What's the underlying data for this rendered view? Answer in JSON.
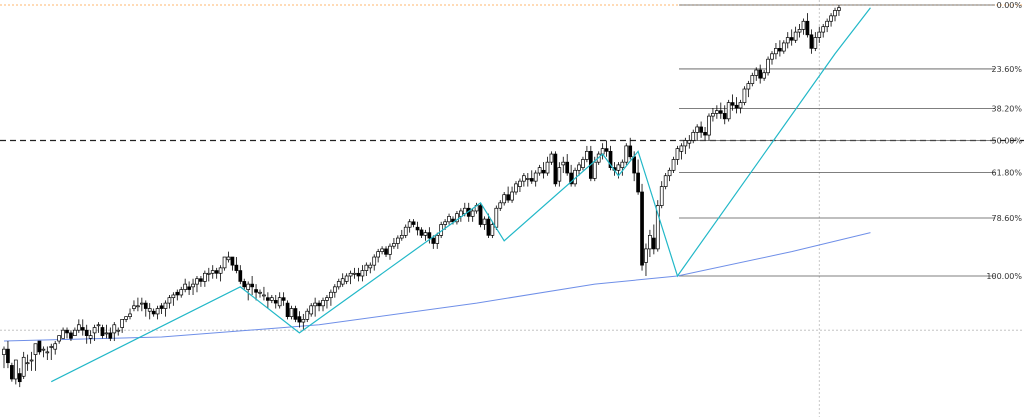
{
  "chart_data": {
    "type": "candlestick",
    "title": "",
    "xlabel": "",
    "ylabel": "",
    "ylim": [
      -0.3,
      1.05
    ],
    "fibonacci": {
      "x_start_index": 171,
      "x_end_index": 256,
      "levels": [
        {
          "ratio": 0.0,
          "label": "0.00%",
          "value": 1.0
        },
        {
          "ratio": 0.236,
          "label": "23.60%",
          "value": 0.764
        },
        {
          "ratio": 0.382,
          "label": "38.20%",
          "value": 0.618
        },
        {
          "ratio": 0.5,
          "label": "50.00%",
          "value": 0.5
        },
        {
          "ratio": 0.618,
          "label": "61.80%",
          "value": 0.382
        },
        {
          "ratio": 0.786,
          "label": "78.60%",
          "value": 0.214
        },
        {
          "ratio": 1.0,
          "label": "100.00%",
          "value": 0.0
        }
      ]
    },
    "horizontal_lines": [
      {
        "value": 1.0,
        "style": "dotted",
        "color": "#ffa040"
      },
      {
        "value": 0.5,
        "style": "dashed",
        "color": "#222222"
      },
      {
        "value": -0.2,
        "style": "dotted",
        "color": "#bbbbbb"
      }
    ],
    "vertical_lines": [
      {
        "index": 207,
        "style": "dotted",
        "color": "#bbbbbb"
      }
    ],
    "moving_average": {
      "color": "#6f8fe8",
      "points": [
        [
          0,
          -0.24
        ],
        [
          40,
          -0.225
        ],
        [
          80,
          -0.18
        ],
        [
          120,
          -0.1
        ],
        [
          150,
          -0.03
        ],
        [
          171,
          0.0
        ],
        [
          200,
          0.09
        ],
        [
          220,
          0.16
        ]
      ]
    },
    "zigzag": {
      "color": "#22b8c8",
      "points": [
        [
          12,
          -0.39
        ],
        [
          60,
          -0.04
        ],
        [
          75,
          -0.21
        ],
        [
          121,
          0.27
        ],
        [
          127,
          0.13
        ],
        [
          152,
          0.45
        ],
        [
          156,
          0.37
        ],
        [
          161,
          0.46
        ],
        [
          171,
          0.0
        ],
        [
          211,
          0.82
        ],
        [
          220,
          0.99
        ]
      ]
    },
    "candles": [
      [
        -0.29,
        -0.26,
        -0.34,
        -0.27
      ],
      [
        -0.27,
        -0.24,
        -0.34,
        -0.32
      ],
      [
        -0.33,
        -0.32,
        -0.39,
        -0.38
      ],
      [
        -0.38,
        -0.31,
        -0.4,
        -0.31
      ],
      [
        -0.36,
        -0.34,
        -0.41,
        -0.39
      ],
      [
        -0.37,
        -0.28,
        -0.38,
        -0.3
      ],
      [
        -0.32,
        -0.29,
        -0.35,
        -0.32
      ],
      [
        -0.31,
        -0.28,
        -0.35,
        -0.31
      ],
      [
        -0.29,
        -0.25,
        -0.35,
        -0.25
      ],
      [
        -0.24,
        -0.24,
        -0.29,
        -0.28
      ],
      [
        -0.27,
        -0.26,
        -0.3,
        -0.27
      ],
      [
        -0.28,
        -0.26,
        -0.31,
        -0.28
      ],
      [
        -0.26,
        -0.25,
        -0.31,
        -0.26
      ],
      [
        -0.27,
        -0.24,
        -0.29,
        -0.25
      ],
      [
        -0.24,
        -0.22,
        -0.25,
        -0.22
      ],
      [
        -0.23,
        -0.19,
        -0.23,
        -0.2
      ],
      [
        -0.2,
        -0.19,
        -0.23,
        -0.21
      ],
      [
        -0.21,
        -0.2,
        -0.24,
        -0.23
      ],
      [
        -0.22,
        -0.19,
        -0.22,
        -0.2
      ],
      [
        -0.2,
        -0.16,
        -0.21,
        -0.18
      ],
      [
        -0.19,
        -0.16,
        -0.22,
        -0.2
      ],
      [
        -0.2,
        -0.18,
        -0.25,
        -0.22
      ],
      [
        -0.23,
        -0.2,
        -0.25,
        -0.22
      ],
      [
        -0.21,
        -0.18,
        -0.24,
        -0.19
      ],
      [
        -0.18,
        -0.17,
        -0.21,
        -0.18
      ],
      [
        -0.19,
        -0.18,
        -0.23,
        -0.22
      ],
      [
        -0.21,
        -0.18,
        -0.23,
        -0.21
      ],
      [
        -0.21,
        -0.19,
        -0.24,
        -0.23
      ],
      [
        -0.21,
        -0.17,
        -0.24,
        -0.18
      ],
      [
        -0.2,
        -0.19,
        -0.22,
        -0.2
      ],
      [
        -0.19,
        -0.16,
        -0.21,
        -0.16
      ],
      [
        -0.16,
        -0.15,
        -0.17,
        -0.15
      ],
      [
        -0.15,
        -0.12,
        -0.16,
        -0.14
      ],
      [
        -0.12,
        -0.09,
        -0.13,
        -0.11
      ],
      [
        -0.11,
        -0.08,
        -0.13,
        -0.11
      ],
      [
        -0.1,
        -0.08,
        -0.13,
        -0.1
      ],
      [
        -0.1,
        -0.09,
        -0.15,
        -0.12
      ],
      [
        -0.13,
        -0.1,
        -0.16,
        -0.12
      ],
      [
        -0.13,
        -0.12,
        -0.15,
        -0.14
      ],
      [
        -0.14,
        -0.11,
        -0.16,
        -0.12
      ],
      [
        -0.11,
        -0.1,
        -0.14,
        -0.12
      ],
      [
        -0.12,
        -0.09,
        -0.15,
        -0.1
      ],
      [
        -0.1,
        -0.07,
        -0.12,
        -0.08
      ],
      [
        -0.08,
        -0.06,
        -0.11,
        -0.07
      ],
      [
        -0.06,
        -0.05,
        -0.09,
        -0.07
      ],
      [
        -0.07,
        -0.04,
        -0.08,
        -0.05
      ],
      [
        -0.05,
        -0.01,
        -0.06,
        -0.03
      ],
      [
        -0.04,
        -0.02,
        -0.07,
        -0.05
      ],
      [
        -0.04,
        -0.01,
        -0.07,
        -0.03
      ],
      [
        -0.03,
        0.0,
        -0.06,
        -0.01
      ],
      [
        -0.01,
        0.0,
        -0.04,
        -0.02
      ],
      [
        -0.02,
        0.02,
        -0.04,
        0.01
      ],
      [
        0.01,
        0.03,
        -0.02,
        0.01
      ],
      [
        0.01,
        0.04,
        -0.01,
        0.02
      ],
      [
        0.02,
        0.03,
        -0.01,
        0.01
      ],
      [
        0.01,
        0.04,
        -0.02,
        0.03
      ],
      [
        0.03,
        0.07,
        0.02,
        0.07
      ],
      [
        0.06,
        0.09,
        0.05,
        0.07
      ],
      [
        0.07,
        0.07,
        0.02,
        0.04
      ],
      [
        0.04,
        0.07,
        0.01,
        0.02
      ],
      [
        0.02,
        0.04,
        -0.03,
        -0.02
      ],
      [
        -0.02,
        -0.01,
        -0.05,
        -0.04
      ],
      [
        -0.05,
        -0.02,
        -0.09,
        -0.03
      ],
      [
        -0.03,
        0.0,
        -0.07,
        -0.04
      ],
      [
        -0.05,
        -0.03,
        -0.09,
        -0.06
      ],
      [
        -0.06,
        -0.05,
        -0.08,
        -0.06
      ],
      [
        -0.07,
        -0.04,
        -0.09,
        -0.07
      ],
      [
        -0.08,
        -0.06,
        -0.12,
        -0.09
      ],
      [
        -0.09,
        -0.07,
        -0.1,
        -0.08
      ],
      [
        -0.09,
        -0.07,
        -0.12,
        -0.1
      ],
      [
        -0.11,
        -0.06,
        -0.12,
        -0.08
      ],
      [
        -0.08,
        -0.06,
        -0.11,
        -0.09
      ],
      [
        -0.1,
        -0.09,
        -0.16,
        -0.15
      ],
      [
        -0.15,
        -0.11,
        -0.16,
        -0.12
      ],
      [
        -0.12,
        -0.11,
        -0.17,
        -0.16
      ],
      [
        -0.15,
        -0.13,
        -0.19,
        -0.17
      ],
      [
        -0.17,
        -0.14,
        -0.2,
        -0.16
      ],
      [
        -0.16,
        -0.12,
        -0.17,
        -0.13
      ],
      [
        -0.14,
        -0.1,
        -0.15,
        -0.11
      ],
      [
        -0.11,
        -0.08,
        -0.15,
        -0.1
      ],
      [
        -0.1,
        -0.09,
        -0.13,
        -0.11
      ],
      [
        -0.11,
        -0.08,
        -0.13,
        -0.09
      ],
      [
        -0.09,
        -0.07,
        -0.12,
        -0.08
      ],
      [
        -0.08,
        -0.05,
        -0.11,
        -0.06
      ],
      [
        -0.06,
        -0.03,
        -0.08,
        -0.04
      ],
      [
        -0.04,
        -0.01,
        -0.05,
        -0.02
      ],
      [
        -0.03,
        0.01,
        -0.04,
        -0.01
      ],
      [
        -0.02,
        0.01,
        -0.03,
        0.0
      ],
      [
        0.0,
        0.02,
        -0.03,
        0.01
      ],
      [
        0.01,
        0.03,
        -0.01,
        0.01
      ],
      [
        0.01,
        0.03,
        -0.02,
        0.0
      ],
      [
        0.0,
        0.04,
        -0.02,
        0.02
      ],
      [
        0.02,
        0.05,
        0.0,
        0.04
      ],
      [
        0.03,
        0.05,
        0.01,
        0.04
      ],
      [
        0.04,
        0.08,
        0.02,
        0.07
      ],
      [
        0.07,
        0.1,
        0.05,
        0.09
      ],
      [
        0.09,
        0.11,
        0.08,
        0.1
      ],
      [
        0.1,
        0.11,
        0.07,
        0.08
      ],
      [
        0.08,
        0.12,
        0.06,
        0.11
      ],
      [
        0.11,
        0.14,
        0.1,
        0.12
      ],
      [
        0.12,
        0.15,
        0.1,
        0.14
      ],
      [
        0.14,
        0.17,
        0.13,
        0.15
      ],
      [
        0.15,
        0.19,
        0.14,
        0.18
      ],
      [
        0.18,
        0.21,
        0.16,
        0.2
      ],
      [
        0.2,
        0.21,
        0.18,
        0.19
      ],
      [
        0.18,
        0.2,
        0.15,
        0.17
      ],
      [
        0.17,
        0.18,
        0.14,
        0.15
      ],
      [
        0.15,
        0.17,
        0.13,
        0.16
      ],
      [
        0.16,
        0.18,
        0.12,
        0.14
      ],
      [
        0.14,
        0.15,
        0.1,
        0.12
      ],
      [
        0.12,
        0.16,
        0.1,
        0.15
      ],
      [
        0.15,
        0.2,
        0.14,
        0.19
      ],
      [
        0.19,
        0.21,
        0.17,
        0.2
      ],
      [
        0.2,
        0.23,
        0.19,
        0.22
      ],
      [
        0.21,
        0.22,
        0.19,
        0.2
      ],
      [
        0.2,
        0.24,
        0.19,
        0.23
      ],
      [
        0.22,
        0.25,
        0.2,
        0.24
      ],
      [
        0.23,
        0.27,
        0.22,
        0.25
      ],
      [
        0.25,
        0.27,
        0.2,
        0.22
      ],
      [
        0.22,
        0.25,
        0.2,
        0.24
      ],
      [
        0.24,
        0.27,
        0.23,
        0.26
      ],
      [
        0.26,
        0.27,
        0.18,
        0.19
      ],
      [
        0.19,
        0.22,
        0.17,
        0.21
      ],
      [
        0.21,
        0.23,
        0.14,
        0.15
      ],
      [
        0.15,
        0.2,
        0.14,
        0.19
      ],
      [
        0.18,
        0.26,
        0.17,
        0.25
      ],
      [
        0.25,
        0.28,
        0.24,
        0.27
      ],
      [
        0.27,
        0.31,
        0.26,
        0.3
      ],
      [
        0.3,
        0.33,
        0.27,
        0.28
      ],
      [
        0.28,
        0.33,
        0.27,
        0.31
      ],
      [
        0.31,
        0.35,
        0.3,
        0.34
      ],
      [
        0.33,
        0.36,
        0.31,
        0.35
      ],
      [
        0.35,
        0.38,
        0.33,
        0.37
      ],
      [
        0.36,
        0.38,
        0.33,
        0.36
      ],
      [
        0.36,
        0.39,
        0.34,
        0.35
      ],
      [
        0.35,
        0.39,
        0.33,
        0.38
      ],
      [
        0.38,
        0.41,
        0.37,
        0.4
      ],
      [
        0.39,
        0.42,
        0.36,
        0.38
      ],
      [
        0.38,
        0.44,
        0.37,
        0.42
      ],
      [
        0.42,
        0.46,
        0.41,
        0.45
      ],
      [
        0.45,
        0.46,
        0.33,
        0.34
      ],
      [
        0.35,
        0.42,
        0.33,
        0.4
      ],
      [
        0.41,
        0.44,
        0.38,
        0.42
      ],
      [
        0.42,
        0.45,
        0.37,
        0.38
      ],
      [
        0.38,
        0.41,
        0.33,
        0.34
      ],
      [
        0.34,
        0.4,
        0.33,
        0.39
      ],
      [
        0.39,
        0.42,
        0.37,
        0.41
      ],
      [
        0.4,
        0.44,
        0.39,
        0.43
      ],
      [
        0.43,
        0.48,
        0.42,
        0.46
      ],
      [
        0.46,
        0.48,
        0.35,
        0.36
      ],
      [
        0.36,
        0.44,
        0.35,
        0.42
      ],
      [
        0.42,
        0.46,
        0.41,
        0.45
      ],
      [
        0.45,
        0.49,
        0.43,
        0.47
      ],
      [
        0.47,
        0.5,
        0.44,
        0.46
      ],
      [
        0.46,
        0.48,
        0.39,
        0.4
      ],
      [
        0.4,
        0.42,
        0.37,
        0.39
      ],
      [
        0.39,
        0.42,
        0.36,
        0.41
      ],
      [
        0.4,
        0.43,
        0.37,
        0.42
      ],
      [
        0.42,
        0.49,
        0.41,
        0.48
      ],
      [
        0.48,
        0.51,
        0.43,
        0.44
      ],
      [
        0.44,
        0.46,
        0.35,
        0.38
      ],
      [
        0.38,
        0.43,
        0.3,
        0.31
      ],
      [
        0.31,
        0.34,
        0.02,
        0.04
      ],
      [
        0.05,
        0.12,
        0.0,
        0.1
      ],
      [
        0.1,
        0.17,
        0.07,
        0.15
      ],
      [
        0.14,
        0.19,
        0.08,
        0.1
      ],
      [
        0.1,
        0.28,
        0.09,
        0.26
      ],
      [
        0.26,
        0.35,
        0.25,
        0.33
      ],
      [
        0.33,
        0.38,
        0.32,
        0.37
      ],
      [
        0.37,
        0.4,
        0.35,
        0.39
      ],
      [
        0.39,
        0.44,
        0.38,
        0.43
      ],
      [
        0.43,
        0.48,
        0.41,
        0.47
      ],
      [
        0.46,
        0.49,
        0.43,
        0.48
      ],
      [
        0.48,
        0.51,
        0.45,
        0.5
      ],
      [
        0.49,
        0.52,
        0.47,
        0.5
      ],
      [
        0.5,
        0.54,
        0.49,
        0.53
      ],
      [
        0.53,
        0.56,
        0.5,
        0.55
      ],
      [
        0.55,
        0.57,
        0.51,
        0.53
      ],
      [
        0.53,
        0.55,
        0.5,
        0.52
      ],
      [
        0.52,
        0.6,
        0.5,
        0.59
      ],
      [
        0.59,
        0.62,
        0.57,
        0.6
      ],
      [
        0.6,
        0.63,
        0.58,
        0.61
      ],
      [
        0.61,
        0.64,
        0.58,
        0.6
      ],
      [
        0.6,
        0.63,
        0.56,
        0.58
      ],
      [
        0.58,
        0.65,
        0.57,
        0.64
      ],
      [
        0.64,
        0.67,
        0.61,
        0.63
      ],
      [
        0.63,
        0.66,
        0.6,
        0.62
      ],
      [
        0.62,
        0.65,
        0.6,
        0.64
      ],
      [
        0.64,
        0.7,
        0.63,
        0.69
      ],
      [
        0.69,
        0.72,
        0.66,
        0.71
      ],
      [
        0.71,
        0.75,
        0.7,
        0.74
      ],
      [
        0.74,
        0.77,
        0.72,
        0.76
      ],
      [
        0.76,
        0.78,
        0.71,
        0.73
      ],
      [
        0.73,
        0.76,
        0.72,
        0.75
      ],
      [
        0.75,
        0.81,
        0.74,
        0.8
      ],
      [
        0.8,
        0.83,
        0.78,
        0.82
      ],
      [
        0.82,
        0.86,
        0.8,
        0.84
      ],
      [
        0.84,
        0.87,
        0.81,
        0.83
      ],
      [
        0.83,
        0.87,
        0.82,
        0.86
      ],
      [
        0.86,
        0.9,
        0.84,
        0.88
      ],
      [
        0.88,
        0.91,
        0.85,
        0.87
      ],
      [
        0.87,
        0.92,
        0.86,
        0.9
      ],
      [
        0.9,
        0.93,
        0.88,
        0.91
      ],
      [
        0.91,
        0.95,
        0.89,
        0.94
      ],
      [
        0.94,
        0.97,
        0.88,
        0.89
      ],
      [
        0.89,
        0.91,
        0.82,
        0.84
      ],
      [
        0.84,
        0.9,
        0.83,
        0.88
      ],
      [
        0.88,
        0.92,
        0.86,
        0.9
      ],
      [
        0.9,
        0.93,
        0.88,
        0.92
      ],
      [
        0.92,
        0.95,
        0.9,
        0.94
      ],
      [
        0.94,
        0.97,
        0.92,
        0.96
      ],
      [
        0.96,
        0.99,
        0.94,
        0.98
      ],
      [
        0.98,
        1.0,
        0.96,
        0.99
      ]
    ]
  }
}
